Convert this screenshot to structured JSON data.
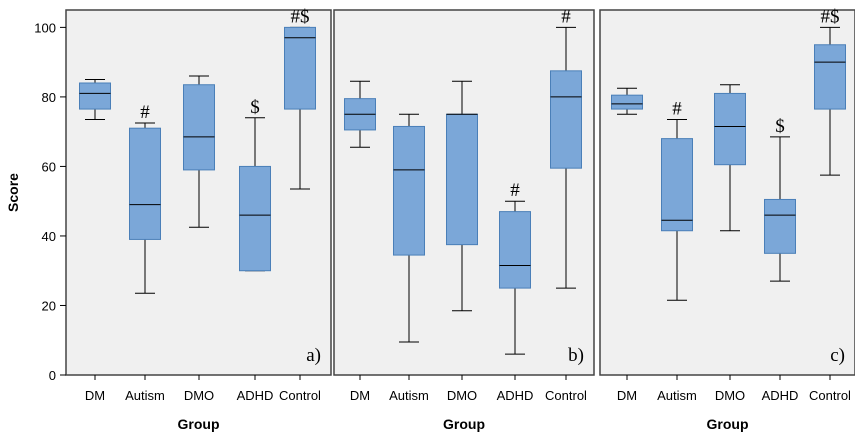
{
  "chart_data": [
    {
      "type": "box",
      "panel_label": "a)",
      "categories": [
        "DM",
        "Autism",
        "DMO",
        "ADHD",
        "Control"
      ],
      "xlabel": "Group",
      "ylabel": "Score",
      "ylim": [
        0,
        105
      ],
      "yticks": [
        0,
        20,
        40,
        60,
        80,
        100
      ],
      "boxes": [
        {
          "category": "DM",
          "min": 73.5,
          "q1": 76.5,
          "median": 81.0,
          "q3": 84.0,
          "max": 85.0,
          "mark": ""
        },
        {
          "category": "Autism",
          "min": 23.5,
          "q1": 39.0,
          "median": 49.0,
          "q3": 71.0,
          "max": 72.5,
          "mark": "#"
        },
        {
          "category": "DMO",
          "min": 42.5,
          "q1": 59.0,
          "median": 68.5,
          "q3": 83.5,
          "max": 86.0,
          "mark": ""
        },
        {
          "category": "ADHD",
          "min": 30.0,
          "q1": 30.0,
          "median": 46.0,
          "q3": 60.0,
          "max": 74.0,
          "mark": "$"
        },
        {
          "category": "Control",
          "min": 53.5,
          "q1": 76.5,
          "median": 97.0,
          "q3": 100.0,
          "max": 100.0,
          "mark": "#$"
        }
      ]
    },
    {
      "type": "box",
      "panel_label": "b)",
      "categories": [
        "DM",
        "Autism",
        "DMO",
        "ADHD",
        "Control"
      ],
      "xlabel": "Group",
      "ylabel": "",
      "ylim": [
        0,
        105
      ],
      "yticks": [],
      "boxes": [
        {
          "category": "DM",
          "min": 65.5,
          "q1": 70.5,
          "median": 75.0,
          "q3": 79.5,
          "max": 84.5,
          "mark": ""
        },
        {
          "category": "Autism",
          "min": 9.5,
          "q1": 34.5,
          "median": 59.0,
          "q3": 71.5,
          "max": 75.0,
          "mark": ""
        },
        {
          "category": "DMO",
          "min": 18.5,
          "q1": 37.5,
          "median": 75.0,
          "q3": 75.0,
          "max": 84.5,
          "mark": ""
        },
        {
          "category": "ADHD",
          "min": 6.0,
          "q1": 25.0,
          "median": 31.5,
          "q3": 47.0,
          "max": 50.0,
          "mark": "#"
        },
        {
          "category": "Control",
          "min": 25.0,
          "q1": 59.5,
          "median": 80.0,
          "q3": 87.5,
          "max": 100.0,
          "mark": "#"
        }
      ]
    },
    {
      "type": "box",
      "panel_label": "c)",
      "categories": [
        "DM",
        "Autism",
        "DMO",
        "ADHD",
        "Control"
      ],
      "xlabel": "Group",
      "ylabel": "",
      "ylim": [
        0,
        105
      ],
      "yticks": [],
      "boxes": [
        {
          "category": "DM",
          "min": 75.0,
          "q1": 76.5,
          "median": 78.0,
          "q3": 80.5,
          "max": 82.5,
          "mark": ""
        },
        {
          "category": "Autism",
          "min": 21.5,
          "q1": 41.5,
          "median": 44.5,
          "q3": 68.0,
          "max": 73.5,
          "mark": "#"
        },
        {
          "category": "DMO",
          "min": 41.5,
          "q1": 60.5,
          "median": 71.5,
          "q3": 81.0,
          "max": 83.5,
          "mark": ""
        },
        {
          "category": "ADHD",
          "min": 27.0,
          "q1": 35.0,
          "median": 46.0,
          "q3": 50.5,
          "max": 68.5,
          "mark": "$"
        },
        {
          "category": "Control",
          "min": 57.5,
          "q1": 76.5,
          "median": 90.0,
          "q3": 95.0,
          "max": 100.0,
          "mark": "#$"
        }
      ]
    }
  ],
  "style": {
    "box_fill": "#7ba7d8",
    "box_stroke": "#4a7fb8",
    "panel_bg": "#f0f0f0",
    "frame_color": "#444444",
    "whisker_color": "#000000"
  }
}
